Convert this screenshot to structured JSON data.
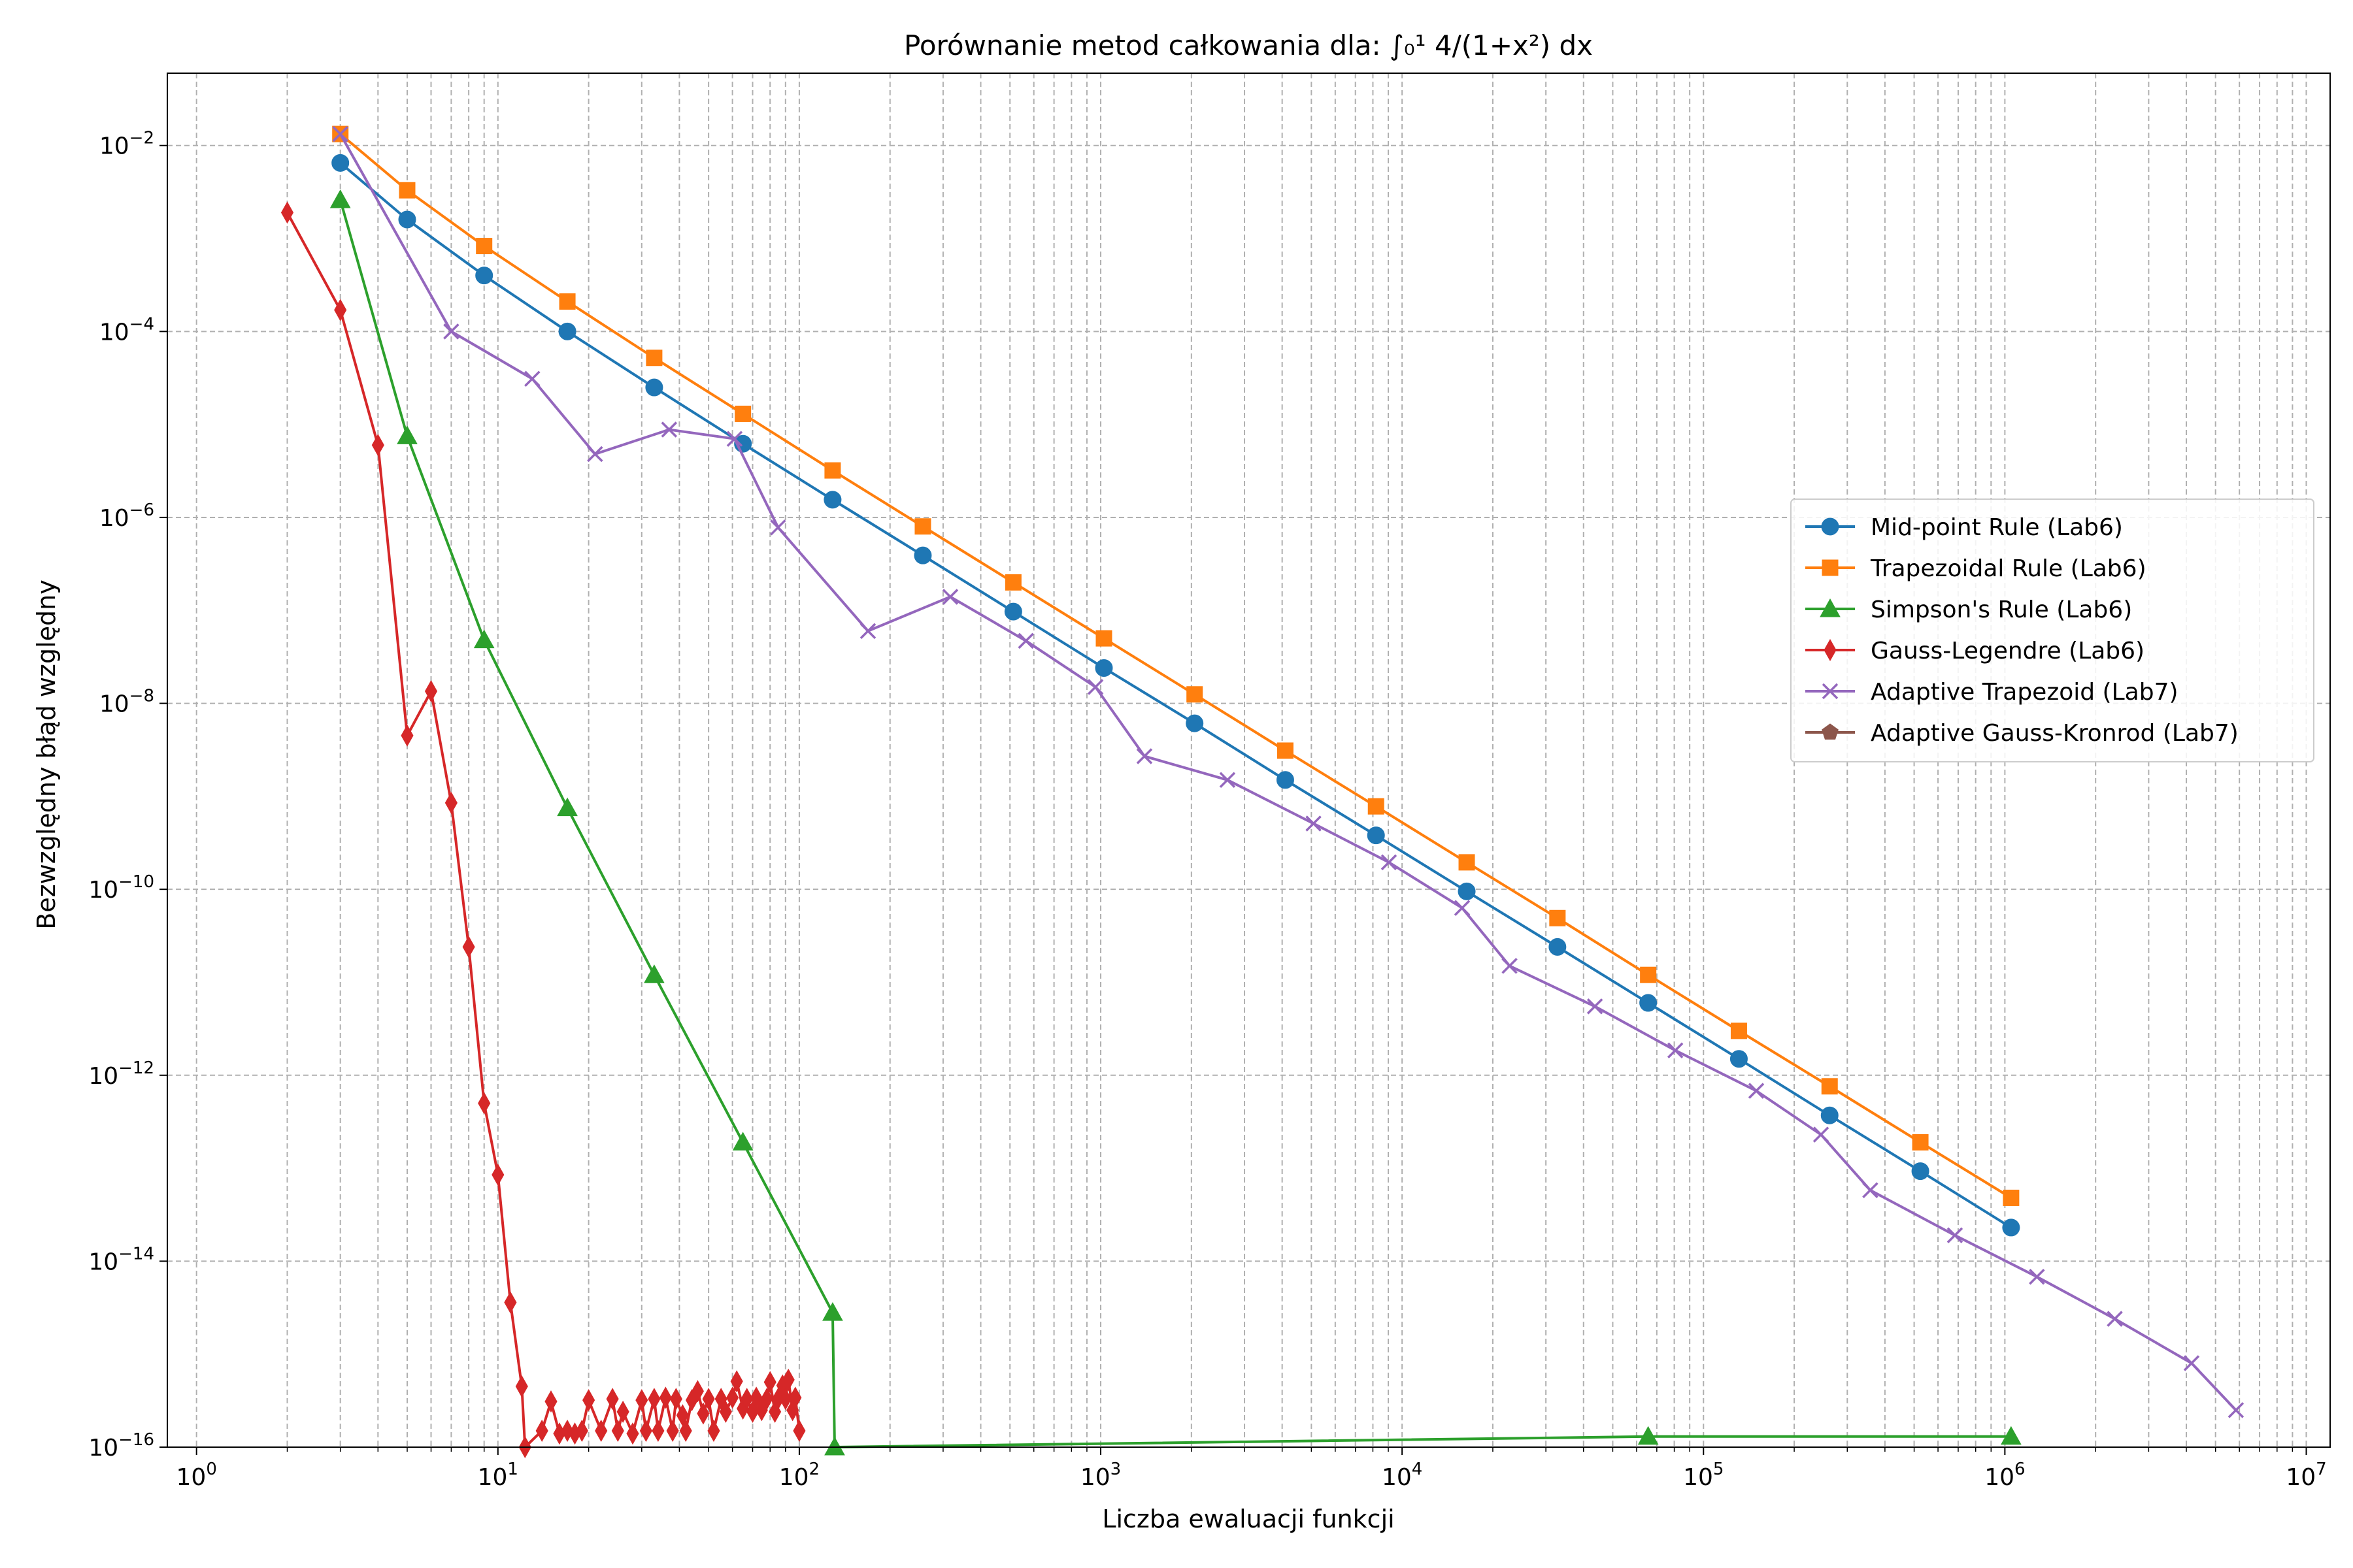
{
  "chart_data": {
    "type": "line",
    "title": "Porównanie metod całkowania dla: ∫₀¹ 4/(1+x²) dx",
    "xlabel": "Liczba ewaluacji funkcji",
    "ylabel": "Bezwzględny błąd względny",
    "x_scale": "log",
    "y_scale": "log",
    "xlim": [
      0.8,
      12000000
    ],
    "ylim": [
      1e-16,
      0.06
    ],
    "grid": true,
    "legend_position": "center-right",
    "x_tick_labels": [
      {
        "base": "10",
        "exp": "0"
      },
      {
        "base": "10",
        "exp": "1"
      },
      {
        "base": "10",
        "exp": "2"
      },
      {
        "base": "10",
        "exp": "3"
      },
      {
        "base": "10",
        "exp": "4"
      },
      {
        "base": "10",
        "exp": "5"
      },
      {
        "base": "10",
        "exp": "6"
      },
      {
        "base": "10",
        "exp": "7"
      }
    ],
    "y_tick_labels": [
      {
        "base": "10",
        "exp": "−16"
      },
      {
        "base": "10",
        "exp": "−14"
      },
      {
        "base": "10",
        "exp": "−12"
      },
      {
        "base": "10",
        "exp": "−10"
      },
      {
        "base": "10",
        "exp": "−8"
      },
      {
        "base": "10",
        "exp": "−6"
      },
      {
        "base": "10",
        "exp": "−4"
      },
      {
        "base": "10",
        "exp": "−2"
      }
    ],
    "series": [
      {
        "name": "Mid-point Rule (Lab6)",
        "color": "#1f77b4",
        "marker": "circle",
        "x": [
          3,
          5,
          9,
          17,
          33,
          65,
          129,
          257,
          513,
          1025,
          2049,
          4097,
          8193,
          16385,
          32769,
          65537,
          131073,
          262145,
          524289,
          1048577
        ],
        "y": [
          0.0065,
          0.0016,
          0.0004,
          0.0001,
          2.5e-05,
          6.2e-06,
          1.55e-06,
          3.9e-07,
          9.7e-08,
          2.4e-08,
          6.1e-09,
          1.5e-09,
          3.8e-10,
          9.5e-11,
          2.4e-11,
          6e-12,
          1.5e-12,
          3.7e-13,
          9.3e-14,
          2.3e-14
        ]
      },
      {
        "name": "Trapezoidal Rule (Lab6)",
        "color": "#ff7f0e",
        "marker": "square",
        "x": [
          3,
          5,
          9,
          17,
          33,
          65,
          129,
          257,
          513,
          1025,
          2049,
          4097,
          8193,
          16385,
          32769,
          65537,
          131073,
          262145,
          524289,
          1048577
        ],
        "y": [
          0.0133,
          0.0033,
          0.00083,
          0.00021,
          5.2e-05,
          1.3e-05,
          3.2e-06,
          8e-07,
          2e-07,
          5e-08,
          1.25e-08,
          3.1e-09,
          7.8e-10,
          1.95e-10,
          4.9e-11,
          1.2e-11,
          3e-12,
          7.6e-13,
          1.9e-13,
          4.8e-14
        ]
      },
      {
        "name": "Simpson's Rule (Lab6)",
        "color": "#2ca02c",
        "marker": "triangle",
        "x": [
          3,
          5,
          9,
          17,
          33,
          65,
          129,
          131,
          65537,
          1048577
        ],
        "y": [
          0.0026,
          7.5e-06,
          4.8e-08,
          7.5e-10,
          1.2e-11,
          1.9e-13,
          2.8e-15,
          1e-16,
          1.3e-16,
          1.3e-16
        ]
      },
      {
        "name": "Gauss-Legendre (Lab6)",
        "color": "#d62728",
        "marker": "diamond",
        "x": [
          2,
          3,
          4,
          5,
          6,
          7,
          8,
          9,
          10,
          11,
          12,
          12.3,
          14,
          15,
          16,
          17,
          18,
          19,
          20,
          22,
          24,
          25,
          26,
          28,
          30,
          31,
          33,
          34,
          36,
          38,
          39,
          41,
          42,
          44,
          46,
          48,
          50,
          52,
          55,
          57,
          60,
          62,
          65,
          67,
          70,
          72,
          75,
          78,
          80,
          83,
          85,
          88,
          90,
          92,
          95,
          97,
          100
        ],
        "y": [
          0.0019,
          0.00017,
          6e-06,
          4.5e-09,
          1.35e-08,
          8.5e-10,
          2.4e-11,
          5e-13,
          8.5e-14,
          3.6e-15,
          4.5e-16,
          1e-16,
          1.5e-16,
          3.1e-16,
          1.4e-16,
          1.5e-16,
          1.4e-16,
          1.5e-16,
          3.2e-16,
          1.5e-16,
          3.3e-16,
          1.5e-16,
          2.4e-16,
          1.4e-16,
          3.2e-16,
          1.5e-16,
          3.3e-16,
          1.5e-16,
          3.4e-16,
          1.5e-16,
          3.3e-16,
          2.2e-16,
          1.5e-16,
          3.2e-16,
          4e-16,
          2.3e-16,
          3.3e-16,
          1.5e-16,
          3.3e-16,
          2.4e-16,
          3.4e-16,
          5.1e-16,
          2.6e-16,
          3.3e-16,
          2.4e-16,
          3.4e-16,
          2.5e-16,
          3.3e-16,
          5e-16,
          2.4e-16,
          3.3e-16,
          4.6e-16,
          3.3e-16,
          5.3e-16,
          2.5e-16,
          3.4e-16,
          1.5e-16
        ]
      },
      {
        "name": "Adaptive Trapezoid (Lab7)",
        "color": "#9467bd",
        "marker": "x",
        "x": [
          3,
          7,
          13,
          21,
          37,
          61,
          85,
          169,
          317,
          565,
          961,
          1397,
          2633,
          5081,
          9041,
          15821,
          22729,
          43617,
          80641,
          149681,
          245377,
          357577,
          682569,
          1276977,
          2315489,
          4163145,
          5842905
        ],
        "y": [
          0.0133,
          0.0001,
          3.1e-05,
          4.8e-06,
          8.8e-06,
          7e-06,
          7.8e-07,
          6e-08,
          1.4e-07,
          4.7e-08,
          1.5e-08,
          2.7e-09,
          1.5e-09,
          5.1e-10,
          1.95e-10,
          6.3e-11,
          1.5e-11,
          5.5e-12,
          1.85e-12,
          6.8e-13,
          2.3e-13,
          5.8e-14,
          1.9e-14,
          6.8e-15,
          2.4e-15,
          8e-16,
          2.5e-16
        ]
      },
      {
        "name": "Adaptive Gauss-Kronrod (Lab7)",
        "color": "#8c564b",
        "marker": "pentagon",
        "x": [],
        "y": []
      }
    ]
  }
}
